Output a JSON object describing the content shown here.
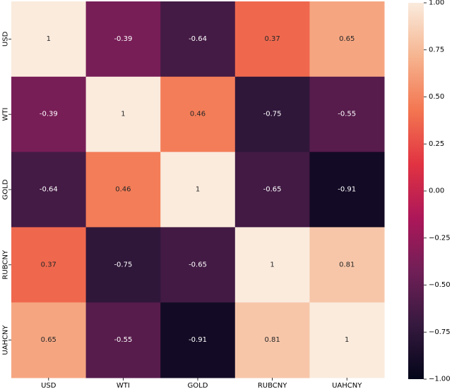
{
  "chart_data": {
    "type": "heatmap",
    "title": "",
    "xlabel": "",
    "ylabel": "",
    "labels": [
      "USD",
      "WTI",
      "GOLD",
      "RUBCNY",
      "UAHCNY"
    ],
    "matrix": [
      [
        1,
        -0.39,
        -0.64,
        0.37,
        0.65
      ],
      [
        -0.39,
        1,
        0.46,
        -0.75,
        -0.55
      ],
      [
        -0.64,
        0.46,
        1,
        -0.65,
        -0.91
      ],
      [
        0.37,
        -0.75,
        -0.65,
        1,
        0.81
      ],
      [
        0.65,
        -0.55,
        -0.91,
        0.81,
        1
      ]
    ],
    "cell_labels": [
      [
        "1",
        "-0.39",
        "-0.64",
        "0.37",
        "0.65"
      ],
      [
        "-0.39",
        "1",
        "0.46",
        "-0.75",
        "-0.55"
      ],
      [
        "-0.64",
        "0.46",
        "1",
        "-0.65",
        "-0.91"
      ],
      [
        "0.37",
        "-0.75",
        "-0.65",
        "1",
        "0.81"
      ],
      [
        "0.65",
        "-0.55",
        "-0.91",
        "0.81",
        "1"
      ]
    ],
    "colorbar": {
      "range": [
        -1.0,
        1.0
      ],
      "ticks": [
        1.0,
        0.75,
        0.5,
        0.25,
        0.0,
        -0.25,
        -0.5,
        -0.75,
        -1.0
      ],
      "tick_labels": [
        "1.00",
        "0.75",
        "0.50",
        "0.25",
        "0.00",
        "−0.25",
        "−0.50",
        "−0.75",
        "−1.00"
      ],
      "colormap": "rocket",
      "stops": [
        "#03051a",
        "#35193e",
        "#701f57",
        "#ad1759",
        "#e13342",
        "#f37651",
        "#f6b48f",
        "#faebdd"
      ]
    },
    "grid": false
  }
}
